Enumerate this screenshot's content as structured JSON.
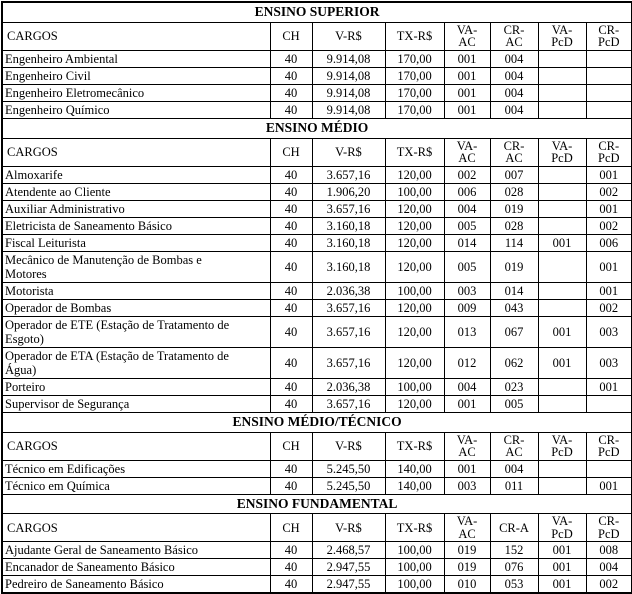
{
  "page": {
    "background_color": "#ffffff",
    "text_color": "#000000",
    "border_color": "#000000"
  },
  "table": {
    "sections": [
      {
        "title": "ENSINO SUPERIOR",
        "headers": [
          "CARGOS",
          "CH",
          "V-R$",
          "TX-R$",
          "VA-\nAC",
          "CR-\nAC",
          "VA-\nPcD",
          "CR-\nPcD"
        ],
        "rows": [
          [
            "Engenheiro Ambiental",
            "40",
            "9.914,08",
            "170,00",
            "001",
            "004",
            "",
            ""
          ],
          [
            "Engenheiro Civil",
            "40",
            "9.914,08",
            "170,00",
            "001",
            "004",
            "",
            ""
          ],
          [
            "Engenheiro Eletromecânico",
            "40",
            "9.914,08",
            "170,00",
            "001",
            "004",
            "",
            ""
          ],
          [
            "Engenheiro Químico",
            "40",
            "9.914,08",
            "170,00",
            "001",
            "004",
            "",
            ""
          ]
        ]
      },
      {
        "title": "ENSINO MÉDIO",
        "headers": [
          "CARGOS",
          "CH",
          "V-R$",
          "TX-R$",
          "VA-\nAC",
          "CR-\nAC",
          "VA-\nPcD",
          "CR-\nPcD"
        ],
        "rows": [
          [
            "Almoxarife",
            "40",
            "3.657,16",
            "120,00",
            "002",
            "007",
            "",
            "001"
          ],
          [
            "Atendente ao Cliente",
            "40",
            "1.906,20",
            "100,00",
            "006",
            "028",
            "",
            "002"
          ],
          [
            "Auxiliar Administrativo",
            "40",
            "3.657,16",
            "120,00",
            "004",
            "019",
            "",
            "001"
          ],
          [
            "Eletricista de Saneamento Básico",
            "40",
            "3.160,18",
            "120,00",
            "005",
            "028",
            "",
            "002"
          ],
          [
            "Fiscal Leiturista",
            "40",
            "3.160,18",
            "120,00",
            "014",
            "114",
            "001",
            "006"
          ],
          [
            "Mecânico de Manutenção de Bombas e\nMotores",
            "40",
            "3.160,18",
            "120,00",
            "005",
            "019",
            "",
            "001"
          ],
          [
            "Motorista",
            "40",
            "2.036,38",
            "100,00",
            "003",
            "014",
            "",
            "001"
          ],
          [
            "Operador de Bombas",
            "40",
            "3.657,16",
            "120,00",
            "009",
            "043",
            "",
            "002"
          ],
          [
            "Operador de ETE (Estação de Tratamento de\nEsgoto)",
            "40",
            "3.657,16",
            "120,00",
            "013",
            "067",
            "001",
            "003"
          ],
          [
            "Operador de ETA (Estação de Tratamento de\nÁgua)",
            "40",
            "3.657,16",
            "120,00",
            "012",
            "062",
            "001",
            "003"
          ],
          [
            "Porteiro",
            "40",
            "2.036,38",
            "100,00",
            "004",
            "023",
            "",
            "001"
          ],
          [
            "Supervisor de Segurança",
            "40",
            "3.657,16",
            "120,00",
            "001",
            "005",
            "",
            ""
          ]
        ]
      },
      {
        "title": "ENSINO MÉDIO/TÉCNICO",
        "headers": [
          "CARGOS",
          "CH",
          "V-R$",
          "TX-R$",
          "VA-\nAC",
          "CR-\nAC",
          "VA-\nPcD",
          "CR-\nPcD"
        ],
        "rows": [
          [
            "Técnico em Edificações",
            "40",
            "5.245,50",
            "140,00",
            "001",
            "004",
            "",
            ""
          ],
          [
            "Técnico em Química",
            "40",
            "5.245,50",
            "140,00",
            "003",
            "011",
            "",
            "001"
          ]
        ]
      },
      {
        "title": "ENSINO FUNDAMENTAL",
        "headers": [
          "CARGOS",
          "CH",
          "V-R$",
          "TX-R$",
          "VA-\nAC",
          "CR-A",
          "VA-\nPcD",
          "CR-\nPcD"
        ],
        "rows": [
          [
            "Ajudante Geral de Saneamento Básico",
            "40",
            "2.468,57",
            "100,00",
            "019",
            "152",
            "001",
            "008"
          ],
          [
            "Encanador de Saneamento Básico",
            "40",
            "2.947,55",
            "100,00",
            "019",
            "076",
            "001",
            "004"
          ],
          [
            "Pedreiro de Saneamento Básico",
            "40",
            "2.947,55",
            "100,00",
            "010",
            "053",
            "001",
            "002"
          ]
        ]
      }
    ]
  }
}
